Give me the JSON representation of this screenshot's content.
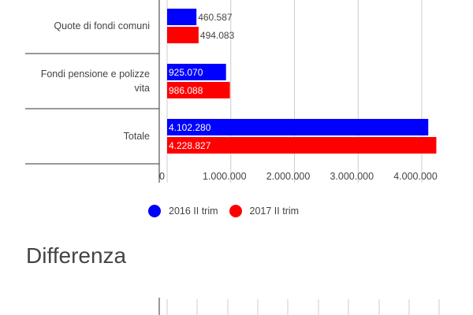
{
  "chart_data": {
    "type": "bar",
    "orientation": "horizontal",
    "categories": [
      "Quote di fondi comuni",
      "Fondi pensione e polizze vita",
      "Totale"
    ],
    "series": [
      {
        "name": "2016 II trim",
        "color": "#0000ff",
        "values": [
          460587,
          925070,
          4102280
        ],
        "labels": [
          "460.587",
          "925.070",
          "4.102.280"
        ]
      },
      {
        "name": "2017 II trim",
        "color": "#ff0000",
        "values": [
          494083,
          986088,
          4228827
        ],
        "labels": [
          "494.083",
          "986.088",
          "4.228.827"
        ]
      }
    ],
    "xlim": [
      0,
      4300000
    ],
    "x_ticks": [
      0,
      1000000,
      2000000,
      3000000,
      4000000
    ],
    "x_tick_labels": [
      "0",
      "1.000.000",
      "2.000.000",
      "3.000.000",
      "4.000.000"
    ],
    "grid": true,
    "legend_position": "bottom"
  },
  "section": {
    "title": "Differenza"
  }
}
